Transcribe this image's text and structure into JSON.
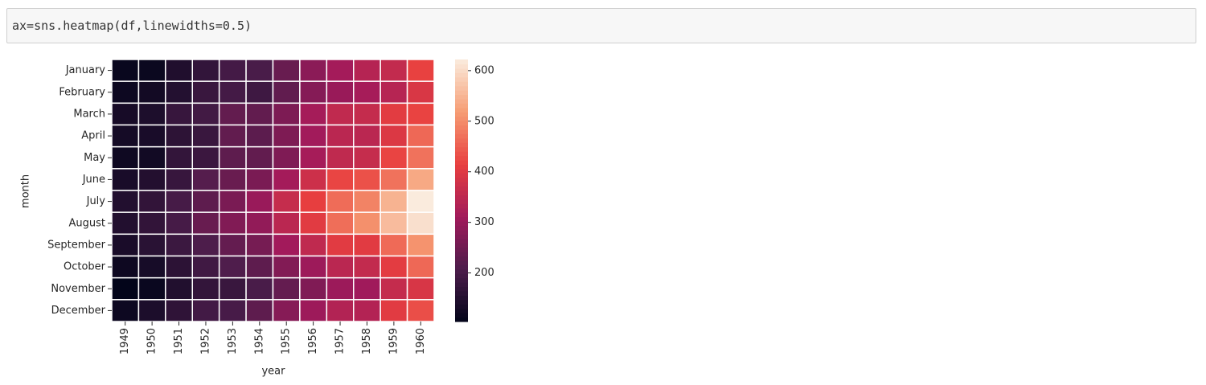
{
  "code_cell": {
    "code": "ax=sns.heatmap(df,linewidths=0.5)"
  },
  "chart_data": {
    "type": "heatmap",
    "x_label": "year",
    "y_label": "month",
    "columns": [
      "1949",
      "1950",
      "1951",
      "1952",
      "1953",
      "1954",
      "1955",
      "1956",
      "1957",
      "1958",
      "1959",
      "1960"
    ],
    "rows": [
      "January",
      "February",
      "March",
      "April",
      "May",
      "June",
      "July",
      "August",
      "September",
      "October",
      "November",
      "December"
    ],
    "values": [
      [
        112,
        115,
        145,
        171,
        196,
        204,
        242,
        284,
        315,
        340,
        360,
        417
      ],
      [
        118,
        126,
        150,
        180,
        196,
        188,
        233,
        277,
        301,
        318,
        342,
        391
      ],
      [
        132,
        141,
        178,
        193,
        236,
        235,
        267,
        317,
        356,
        362,
        406,
        419
      ],
      [
        129,
        135,
        163,
        181,
        235,
        227,
        269,
        313,
        348,
        348,
        396,
        461
      ],
      [
        121,
        125,
        172,
        183,
        229,
        234,
        270,
        318,
        355,
        363,
        420,
        472
      ],
      [
        135,
        149,
        178,
        218,
        243,
        264,
        315,
        374,
        422,
        435,
        472,
        535
      ],
      [
        148,
        170,
        199,
        230,
        264,
        302,
        364,
        413,
        465,
        491,
        548,
        622
      ],
      [
        148,
        170,
        199,
        242,
        272,
        293,
        347,
        405,
        467,
        505,
        559,
        606
      ],
      [
        136,
        158,
        184,
        209,
        237,
        259,
        312,
        355,
        404,
        404,
        463,
        508
      ],
      [
        119,
        133,
        162,
        191,
        211,
        229,
        274,
        306,
        347,
        359,
        407,
        461
      ],
      [
        104,
        114,
        146,
        172,
        180,
        203,
        237,
        271,
        305,
        310,
        362,
        390
      ],
      [
        118,
        140,
        166,
        194,
        201,
        229,
        278,
        306,
        336,
        337,
        405,
        432
      ]
    ],
    "colormap": "rocket",
    "clim": [
      104,
      622
    ],
    "cbar_ticks": [
      200,
      300,
      400,
      500,
      600
    ]
  }
}
